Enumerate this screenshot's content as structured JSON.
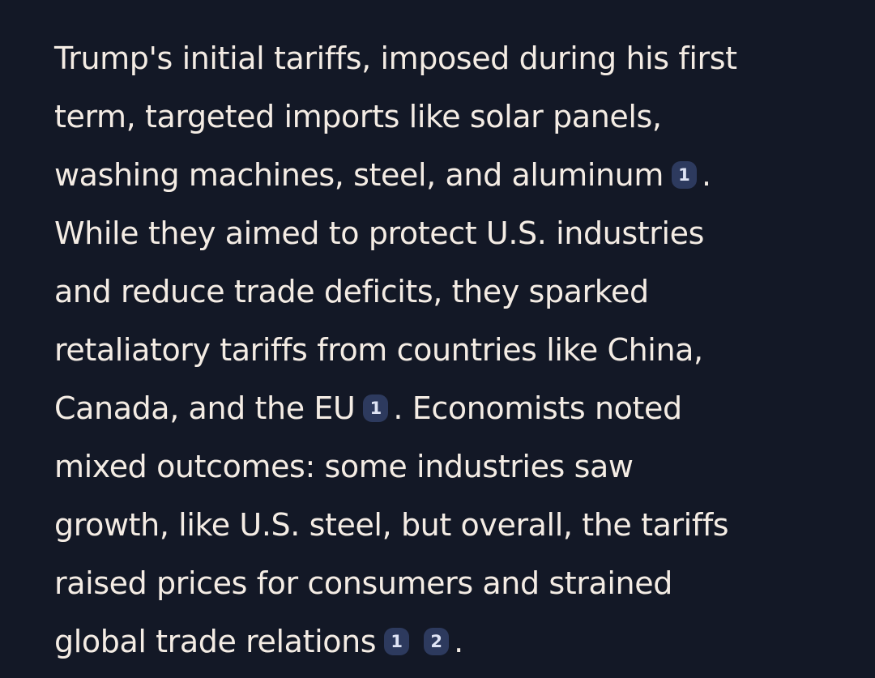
{
  "answer": {
    "lines": [
      "Trump's initial tariffs, imposed during his first",
      "term, targeted imports like solar panels,",
      "washing machines, steel, and aluminum",
      ".",
      "While they aimed to protect U.S. industries",
      "and reduce trade deficits, they sparked",
      "retaliatory tariffs from countries like China,",
      "Canada, and the EU",
      ". Economists noted",
      "mixed outcomes: some industries saw",
      "growth, like U.S. steel, but overall, the tariffs",
      "raised prices for consumers and strained",
      "global trade relations",
      "."
    ],
    "citations": {
      "c1": "1",
      "c2": "1",
      "c3": "1",
      "c4": "2"
    }
  },
  "colors": {
    "background": "#131826",
    "text": "#f4ece4",
    "citation_bg": "#2d3a5e",
    "citation_text": "#dfe4f5"
  }
}
